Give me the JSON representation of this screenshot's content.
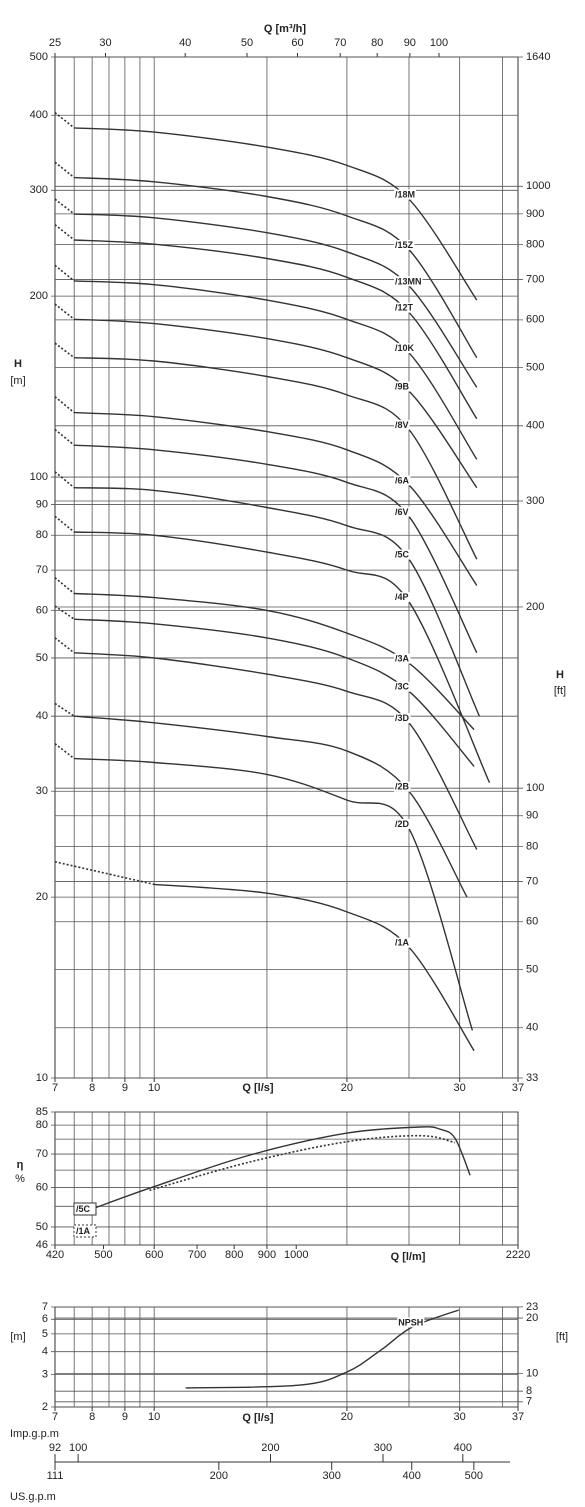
{
  "chart_data": [
    {
      "type": "line",
      "log": true,
      "grid": true,
      "color": "#333333",
      "x_label": "Q [l/s]",
      "x2_label": "Q [m³/h]",
      "y_label": "H",
      "y_unit": "[m]",
      "y2_label": "H",
      "y2_unit": "[ft]",
      "xlim": [
        7,
        37
      ],
      "xticks": [
        7,
        8,
        9,
        10,
        20,
        30,
        37
      ],
      "xgrid": [
        7.5,
        8,
        8.5,
        9,
        9.5,
        10,
        15,
        20,
        25,
        30,
        35
      ],
      "x2lim": [
        25,
        133
      ],
      "x2ticks": [
        25,
        30,
        40,
        50,
        60,
        70,
        80,
        90,
        100
      ],
      "ylim": [
        10,
        500
      ],
      "yticks": [
        10,
        20,
        30,
        40,
        50,
        60,
        70,
        80,
        90,
        100,
        200,
        300,
        400,
        500
      ],
      "y2lim": [
        33,
        1640
      ],
      "y2ticks": [
        33,
        40,
        50,
        60,
        70,
        80,
        90,
        100,
        200,
        300,
        400,
        500,
        600,
        700,
        800,
        900,
        1000,
        1640
      ],
      "series": [
        {
          "name": "/18M",
          "dotted_segments": 1,
          "x": [
            7,
            7.5,
            10,
            15,
            20,
            25,
            31.9
          ],
          "values": [
            404,
            381,
            375,
            354,
            330,
            290,
            197
          ]
        },
        {
          "name": "/15Z",
          "dotted_segments": 1,
          "x": [
            7,
            7.5,
            10,
            15,
            20,
            25,
            31.9
          ],
          "values": [
            334,
            315,
            310,
            293,
            272,
            239,
            158
          ]
        },
        {
          "name": "/13MN",
          "dotted_segments": 1,
          "x": [
            7,
            7.5,
            10,
            15,
            20,
            25,
            31.9
          ],
          "values": [
            290,
            274,
            270,
            255,
            237,
            208,
            141
          ]
        },
        {
          "name": "/12T",
          "dotted_segments": 1,
          "x": [
            7,
            7.5,
            10,
            15,
            20,
            25,
            31.9
          ],
          "values": [
            263,
            248,
            244,
            231,
            215,
            188,
            125
          ]
        },
        {
          "name": "/10K",
          "dotted_segments": 1,
          "x": [
            7,
            7.5,
            10,
            15,
            20,
            25,
            31.9
          ],
          "values": [
            225,
            212,
            209,
            197,
            183,
            161,
            107
          ]
        },
        {
          "name": "/9B",
          "dotted_segments": 1,
          "x": [
            7,
            7.5,
            10,
            15,
            20,
            25,
            31.9
          ],
          "values": [
            194,
            183,
            180,
            170,
            158,
            139,
            96
          ]
        },
        {
          "name": "/8V",
          "dotted_segments": 1,
          "x": [
            7,
            7.5,
            10,
            15,
            20,
            25,
            31.9
          ],
          "values": [
            167,
            158,
            156,
            147,
            137,
            120,
            73
          ]
        },
        {
          "name": "/6A",
          "dotted_segments": 1,
          "x": [
            7,
            7.5,
            10,
            15,
            20,
            25,
            31.9
          ],
          "values": [
            136,
            128,
            126,
            119,
            111,
            97,
            66
          ]
        },
        {
          "name": "/6V",
          "dotted_segments": 1,
          "x": [
            7,
            7.5,
            10,
            15,
            20,
            25,
            31.9
          ],
          "values": [
            120,
            113,
            111,
            105,
            98,
            86,
            51
          ]
        },
        {
          "name": "/5C",
          "dotted_segments": 1,
          "x": [
            7,
            7.5,
            10,
            15,
            20,
            25,
            32.2
          ],
          "values": [
            102,
            96,
            95,
            89,
            83,
            73,
            40
          ]
        },
        {
          "name": "/4P",
          "dotted_segments": 1,
          "x": [
            7,
            7.5,
            10,
            15,
            20,
            25,
            33.4
          ],
          "values": [
            86,
            81,
            80,
            75,
            70,
            62,
            31
          ]
        },
        {
          "name": "/3A",
          "dotted_segments": 1,
          "x": [
            7,
            7.5,
            10,
            15,
            20,
            25,
            31.6
          ],
          "values": [
            68,
            64,
            63,
            60,
            55,
            49,
            38
          ]
        },
        {
          "name": "/3C",
          "dotted_segments": 1,
          "x": [
            7,
            7.5,
            10,
            15,
            20,
            25,
            31.6
          ],
          "values": [
            61,
            58,
            57,
            54,
            50,
            44,
            33
          ]
        },
        {
          "name": "/3D",
          "dotted_segments": 1,
          "x": [
            7,
            7.5,
            10,
            15,
            20,
            25,
            31.9
          ],
          "values": [
            54,
            51,
            50,
            47,
            44,
            39,
            24
          ]
        },
        {
          "name": "/2B",
          "dotted_segments": 1,
          "x": [
            7,
            7.5,
            10,
            15,
            20,
            25,
            30.8
          ],
          "values": [
            42,
            40,
            39,
            37,
            35,
            30,
            20
          ]
        },
        {
          "name": "/2D",
          "dotted_segments": 1,
          "x": [
            7,
            7.5,
            10,
            15,
            20,
            25,
            31.4
          ],
          "values": [
            36,
            34,
            33.5,
            32,
            29,
            26,
            12
          ]
        },
        {
          "name": "/1A",
          "dotted_segments": 1,
          "x": [
            7,
            10,
            15,
            20,
            25,
            31.6
          ],
          "values": [
            22.9,
            21,
            20.3,
            18.9,
            16.5,
            11.1
          ]
        }
      ]
    },
    {
      "type": "line",
      "log": true,
      "grid": true,
      "color": "#333333",
      "legend": "left",
      "x_label": "Q [l/m]",
      "y_label": "η",
      "y_unit": "%",
      "xlim": [
        420,
        2220
      ],
      "xticks": [
        420,
        500,
        600,
        700,
        800,
        900,
        1000,
        2220
      ],
      "xgrid": [
        450,
        480,
        510,
        540,
        570,
        600,
        900,
        1200,
        1500,
        1800,
        2100
      ],
      "ylim": [
        46,
        85
      ],
      "yticks": [
        46,
        50,
        60,
        70,
        80,
        85
      ],
      "ygrid": [
        55,
        65,
        75
      ],
      "series": [
        {
          "name": "/5C",
          "style": "solid",
          "x": [
            485,
            590,
            847,
            1200,
            1562,
            1677,
            1770,
            1869
          ],
          "values": [
            54.6,
            59.8,
            69.7,
            77.1,
            79.3,
            78.5,
            75.3,
            63.5
          ]
        },
        {
          "name": "/1A",
          "style": "dotted",
          "x": [
            590,
            847,
            1200,
            1562,
            1770
          ],
          "values": [
            59.2,
            67.5,
            74.1,
            76.2,
            73.8
          ]
        }
      ]
    },
    {
      "type": "line",
      "log": true,
      "grid": true,
      "color": "#333333",
      "x_label": "Q [l/s]",
      "y_unit": "[m]",
      "y2_unit": "[ft]",
      "xlim": [
        7,
        37
      ],
      "xticks": [
        7,
        8,
        9,
        10,
        20,
        30,
        37
      ],
      "xgrid": [
        7.5,
        8,
        8.5,
        9,
        9.5,
        10,
        15,
        20,
        25,
        30,
        35
      ],
      "ylim": [
        2,
        7
      ],
      "yticks": [
        2,
        3,
        4,
        5,
        6,
        7
      ],
      "y2lim": [
        6.56,
        22.97
      ],
      "y2ticks": [
        7,
        8,
        10,
        20,
        23
      ],
      "series": [
        {
          "name": "NPSH",
          "style": "solid",
          "label_at": 4,
          "x": [
            11.2,
            16.9,
            20,
            22.6,
            25.3,
            29.9
          ],
          "values": [
            2.54,
            2.63,
            3.1,
            4.08,
            5.45,
            6.74
          ]
        }
      ]
    },
    {
      "type": "scale",
      "log": true,
      "imp": {
        "label": "Imp.g.p.m",
        "lim": [
          92,
          488
        ],
        "ticks": [
          92,
          100,
          200,
          300,
          400
        ]
      },
      "us": {
        "label": "US.g.p.m",
        "lim": [
          111,
          586
        ],
        "ticks": [
          111,
          200,
          300,
          400,
          500
        ]
      }
    }
  ]
}
